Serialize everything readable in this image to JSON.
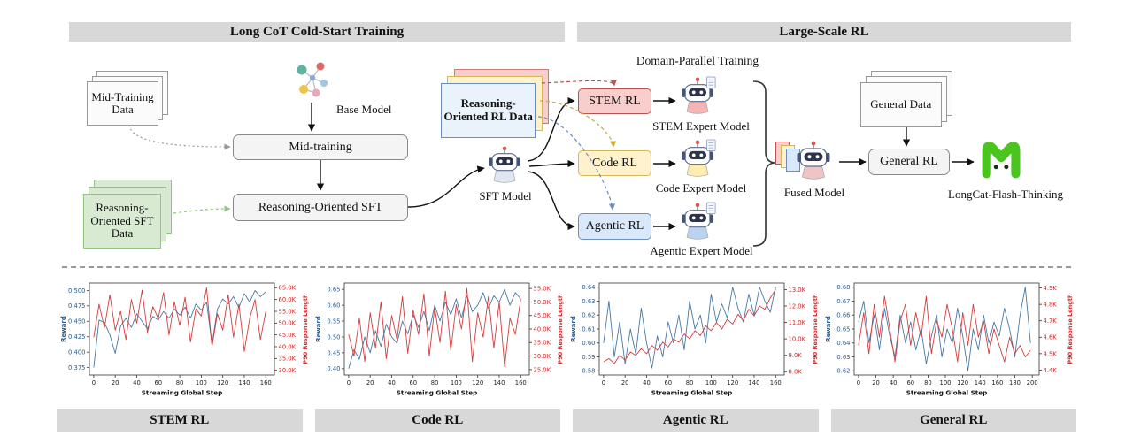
{
  "headers": {
    "left": "Long CoT Cold-Start Training",
    "right": "Large-Scale RL"
  },
  "diagram": {
    "mid_training_data": "Mid-Training Data",
    "base_model": "Base Model",
    "mid_training": "Mid-training",
    "reasoning_sft_data": "Reasoning-Oriented SFT Data",
    "reasoning_sft": "Reasoning-Oriented SFT",
    "reasoning_rl_data": "Reasoning-Oriented RL Data",
    "sft_model": "SFT Model",
    "domain_parallel_training": "Domain-Parallel Training",
    "stem_rl": "STEM RL",
    "code_rl": "Code RL",
    "agentic_rl": "Agentic RL",
    "stem_expert": "STEM Expert Model",
    "code_expert": "Code Expert Model",
    "agentic_expert": "Agentic Expert Model",
    "fused_model": "Fused Model",
    "general_data": "General Data",
    "general_rl": "General RL",
    "longcat": "LongCat-Flash-Thinking"
  },
  "colors": {
    "reward_line": "#4878a4",
    "length_line": "#d43d3d",
    "left_axis": "#2d5b8e",
    "right_axis": "#cc2a2a",
    "stem_fill": "#f8cecc",
    "stem_border": "#b85450",
    "code_fill": "#fff2cc",
    "code_border": "#d6b656",
    "agentic_fill": "#dae8fc",
    "agentic_border": "#6c8ebf",
    "longcat_green": "#49c51e",
    "header_bar": "#d8d8d8"
  },
  "chart_data": [
    {
      "type": "line",
      "title": "STEM RL",
      "xlabel": "Streaming Global Step",
      "ylabel_left": "Reward",
      "ylabel_right": "P90 Response Length",
      "xlim": [
        -4,
        168
      ],
      "xticks": [
        0,
        20,
        40,
        60,
        80,
        100,
        120,
        140,
        160
      ],
      "ylim_left": [
        0.363,
        0.512
      ],
      "yticks_left": [
        0.375,
        0.4,
        0.425,
        0.45,
        0.475,
        0.5
      ],
      "ydecimals": 3,
      "ylim_right": [
        28,
        67
      ],
      "yticks_right": [
        30,
        35,
        40,
        45,
        50,
        55,
        60,
        65
      ],
      "right_unit": "K",
      "x": [
        0,
        5,
        10,
        15,
        20,
        25,
        30,
        35,
        40,
        45,
        50,
        55,
        60,
        65,
        70,
        75,
        80,
        85,
        90,
        95,
        100,
        105,
        110,
        115,
        120,
        125,
        130,
        135,
        140,
        145,
        150,
        155,
        160
      ],
      "series": [
        {
          "name": "Reward",
          "axis": "left",
          "values": [
            0.375,
            0.452,
            0.448,
            0.428,
            0.398,
            0.442,
            0.455,
            0.44,
            0.462,
            0.45,
            0.438,
            0.458,
            0.452,
            0.466,
            0.455,
            0.47,
            0.46,
            0.473,
            0.455,
            0.478,
            0.468,
            0.481,
            0.412,
            0.47,
            0.486,
            0.478,
            0.49,
            0.472,
            0.495,
            0.481,
            0.5,
            0.49,
            0.498
          ]
        },
        {
          "name": "P90 Response Length (K)",
          "axis": "right",
          "values": [
            44,
            58,
            48,
            62,
            47,
            55,
            43,
            60,
            50,
            64,
            46,
            57,
            52,
            63,
            45,
            59,
            49,
            61,
            42,
            56,
            53,
            65,
            40,
            54,
            47,
            62,
            44,
            58,
            38,
            52,
            60,
            43,
            55
          ]
        }
      ]
    },
    {
      "type": "line",
      "title": "Code RL",
      "xlabel": "Streaming Global Step",
      "ylabel_left": "Reward",
      "ylabel_right": "P90 Response Length",
      "xlim": [
        -4,
        168
      ],
      "xticks": [
        0,
        20,
        40,
        60,
        80,
        100,
        120,
        140,
        160
      ],
      "ylim_left": [
        0.38,
        0.67
      ],
      "yticks_left": [
        0.4,
        0.45,
        0.5,
        0.55,
        0.6,
        0.65
      ],
      "ydecimals": 2,
      "ylim_right": [
        23,
        57
      ],
      "yticks_right": [
        25,
        30,
        35,
        40,
        45,
        50,
        55
      ],
      "right_unit": "K",
      "x": [
        0,
        5,
        10,
        15,
        20,
        25,
        30,
        35,
        40,
        45,
        50,
        55,
        60,
        65,
        70,
        75,
        80,
        85,
        90,
        95,
        100,
        105,
        110,
        115,
        120,
        125,
        130,
        135,
        140,
        145,
        150,
        155,
        160
      ],
      "series": [
        {
          "name": "Reward",
          "axis": "left",
          "values": [
            0.4,
            0.46,
            0.43,
            0.5,
            0.45,
            0.52,
            0.47,
            0.54,
            0.5,
            0.48,
            0.55,
            0.51,
            0.57,
            0.53,
            0.58,
            0.52,
            0.6,
            0.55,
            0.61,
            0.57,
            0.62,
            0.56,
            0.63,
            0.58,
            0.6,
            0.64,
            0.59,
            0.63,
            0.61,
            0.65,
            0.6,
            0.64,
            0.62
          ]
        },
        {
          "name": "P90 Response Length (K)",
          "axis": "right",
          "values": [
            38,
            30,
            44,
            28,
            46,
            33,
            50,
            29,
            45,
            36,
            52,
            31,
            47,
            38,
            53,
            30,
            48,
            35,
            54,
            32,
            49,
            40,
            55,
            28,
            46,
            37,
            52,
            33,
            50,
            26,
            44,
            38,
            51
          ]
        }
      ]
    },
    {
      "type": "line",
      "title": "Agentic RL",
      "xlabel": "Streaming Global Step",
      "ylabel_left": "Reward",
      "ylabel_right": "P90 Response Length",
      "xlim": [
        -4,
        168
      ],
      "xticks": [
        0,
        20,
        40,
        60,
        80,
        100,
        120,
        140,
        160
      ],
      "ylim_left": [
        0.577,
        0.643
      ],
      "yticks_left": [
        0.58,
        0.59,
        0.6,
        0.61,
        0.62,
        0.63,
        0.64
      ],
      "ydecimals": 2,
      "ylim_right": [
        7.8,
        13.4
      ],
      "yticks_right": [
        8,
        9,
        10,
        11,
        12,
        13
      ],
      "right_unit": "K",
      "x": [
        0,
        5,
        10,
        15,
        20,
        25,
        30,
        35,
        40,
        45,
        50,
        55,
        60,
        65,
        70,
        75,
        80,
        85,
        90,
        95,
        100,
        105,
        110,
        115,
        120,
        125,
        130,
        135,
        140,
        145,
        150,
        155,
        160
      ],
      "series": [
        {
          "name": "Reward",
          "axis": "left",
          "values": [
            0.6,
            0.63,
            0.59,
            0.615,
            0.585,
            0.61,
            0.592,
            0.625,
            0.6,
            0.582,
            0.605,
            0.59,
            0.615,
            0.6,
            0.62,
            0.595,
            0.63,
            0.61,
            0.62,
            0.6,
            0.635,
            0.615,
            0.628,
            0.618,
            0.64,
            0.625,
            0.615,
            0.635,
            0.62,
            0.64,
            0.63,
            0.622,
            0.64
          ]
        },
        {
          "name": "P90 Response Length (K)",
          "axis": "right",
          "values": [
            8.6,
            8.8,
            8.5,
            9.0,
            8.7,
            9.2,
            9.0,
            9.4,
            9.1,
            9.6,
            9.3,
            9.8,
            9.5,
            10.0,
            9.8,
            10.3,
            10.0,
            10.5,
            10.2,
            10.8,
            10.5,
            11.0,
            10.6,
            11.2,
            10.9,
            11.5,
            11.1,
            11.8,
            11.4,
            12.0,
            11.8,
            12.5,
            13.0
          ]
        }
      ]
    },
    {
      "type": "line",
      "title": "General RL",
      "xlabel": "Streaming Global Step",
      "ylabel_left": "Reward",
      "ylabel_right": "P90 Response Length",
      "xlim": [
        -5,
        208
      ],
      "xticks": [
        0,
        20,
        40,
        60,
        80,
        100,
        120,
        140,
        160,
        180,
        200
      ],
      "ylim_left": [
        0.617,
        0.683
      ],
      "yticks_left": [
        0.62,
        0.63,
        0.64,
        0.65,
        0.66,
        0.67,
        0.68
      ],
      "ydecimals": 2,
      "ylim_right": [
        4.37,
        4.93
      ],
      "yticks_right": [
        4.4,
        4.5,
        4.6,
        4.7,
        4.8,
        4.9
      ],
      "right_unit": "K",
      "x": [
        0,
        6,
        12,
        18,
        24,
        30,
        36,
        42,
        48,
        54,
        60,
        66,
        72,
        78,
        84,
        90,
        96,
        102,
        108,
        114,
        120,
        126,
        132,
        138,
        144,
        150,
        156,
        162,
        168,
        174,
        180,
        186,
        192,
        198
      ],
      "series": [
        {
          "name": "Reward",
          "axis": "left",
          "values": [
            0.655,
            0.67,
            0.64,
            0.66,
            0.635,
            0.665,
            0.645,
            0.63,
            0.66,
            0.64,
            0.655,
            0.635,
            0.65,
            0.625,
            0.645,
            0.66,
            0.63,
            0.65,
            0.64,
            0.665,
            0.645,
            0.62,
            0.65,
            0.635,
            0.66,
            0.64,
            0.655,
            0.645,
            0.665,
            0.65,
            0.63,
            0.66,
            0.68,
            0.64
          ]
        },
        {
          "name": "P90 Response Length (K)",
          "axis": "right",
          "values": [
            4.55,
            4.75,
            4.5,
            4.8,
            4.6,
            4.85,
            4.65,
            4.45,
            4.7,
            4.8,
            4.55,
            4.75,
            4.6,
            4.85,
            4.5,
            4.7,
            4.6,
            4.8,
            4.65,
            4.45,
            4.75,
            4.55,
            4.8,
            4.6,
            4.7,
            4.5,
            4.65,
            4.55,
            4.45,
            4.6,
            4.5,
            4.55,
            4.48,
            4.52
          ]
        }
      ]
    }
  ]
}
